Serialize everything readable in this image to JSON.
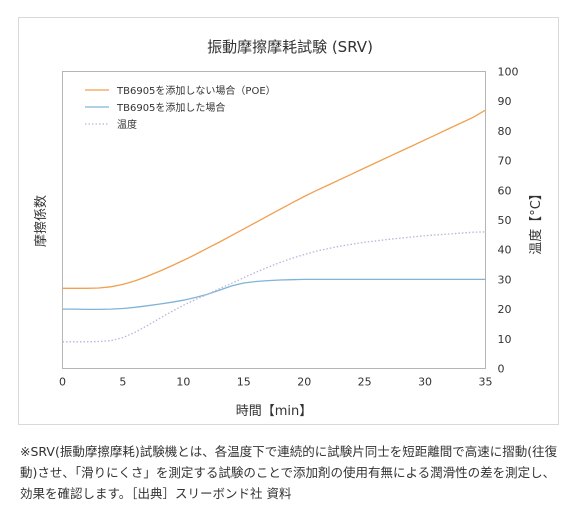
{
  "chart_data": {
    "type": "line",
    "title": "振動摩擦摩耗試験 (SRV)",
    "xlabel": "時間【min】",
    "ylabel_left": "摩擦係数",
    "ylabel_right": "温度【°C】",
    "xlim": [
      0,
      35
    ],
    "xticks": [
      0,
      5,
      10,
      15,
      20,
      25,
      30,
      35
    ],
    "ylim_right": [
      0,
      100
    ],
    "yticks_right": [
      0,
      10,
      20,
      30,
      40,
      50,
      60,
      70,
      80,
      90,
      100
    ],
    "left_axis_tick_labels": "none",
    "grid": false,
    "legend_position": "top-left",
    "series": [
      {
        "name": "TB6905を添加しない場合（POE）",
        "color": "#f0a050",
        "style": "solid",
        "x": [
          0,
          1,
          2,
          3,
          4,
          5,
          6,
          7,
          8,
          9,
          10,
          11,
          12,
          13,
          14,
          15,
          16,
          17,
          18,
          19,
          20,
          21,
          22,
          23,
          24,
          25,
          26,
          27,
          28,
          29,
          30,
          31,
          32,
          33,
          34,
          35
        ],
        "y": [
          27,
          27,
          27,
          27.1,
          27.5,
          28.3,
          29.5,
          31,
          32.7,
          34.5,
          36.4,
          38.4,
          40.5,
          42.6,
          44.8,
          47,
          49.2,
          51.4,
          53.6,
          55.8,
          57.9,
          59.9,
          61.8,
          63.7,
          65.6,
          67.5,
          69.4,
          71.3,
          73.2,
          75.1,
          77,
          78.9,
          80.8,
          82.7,
          84.6,
          87
        ]
      },
      {
        "name": "TB6905を添加した場合",
        "color": "#7fb3d8",
        "style": "solid",
        "x": [
          0,
          1,
          2,
          3,
          4,
          5,
          6,
          7,
          8,
          9,
          10,
          11,
          12,
          13,
          14,
          15,
          16,
          17,
          18,
          19,
          20,
          21,
          22,
          23,
          24,
          25,
          26,
          27,
          28,
          29,
          30,
          31,
          32,
          33,
          34,
          35
        ],
        "y": [
          20,
          20,
          19.9,
          19.9,
          20,
          20.2,
          20.6,
          21.1,
          21.7,
          22.3,
          23,
          23.9,
          25,
          26.4,
          27.8,
          28.8,
          29.3,
          29.6,
          29.8,
          29.9,
          30,
          30,
          30,
          30,
          30,
          30,
          30,
          30,
          30,
          30,
          30,
          30,
          30,
          30,
          30,
          30
        ]
      },
      {
        "name": "温度",
        "color": "#b9b4dc",
        "style": "dotted",
        "x": [
          0,
          1,
          2,
          3,
          4,
          5,
          6,
          7,
          8,
          9,
          10,
          11,
          12,
          13,
          14,
          15,
          16,
          17,
          18,
          19,
          20,
          21,
          22,
          23,
          24,
          25,
          26,
          27,
          28,
          29,
          30,
          31,
          32,
          33,
          34,
          35
        ],
        "y": [
          9,
          9,
          9,
          9.1,
          9.4,
          10.4,
          12.2,
          14.4,
          16.8,
          19.1,
          21.3,
          23.2,
          25,
          26.9,
          28.7,
          30.6,
          32.4,
          34.1,
          35.7,
          37.1,
          38.4,
          39.5,
          40.4,
          41.2,
          41.9,
          42.5,
          43,
          43.5,
          43.9,
          44.3,
          44.7,
          45,
          45.3,
          45.6,
          45.9,
          46
        ]
      }
    ]
  },
  "note": "※SRV(振動摩擦摩耗)試験機とは、各温度下で連続的に試験片同士を短距離間で高速に摺動(往復動)させ、「滑りにくさ」を測定する試験のことで添加剤の使用有無による潤滑性の差を測定し、効果を確認します。［出典］スリーボンド社 資料"
}
